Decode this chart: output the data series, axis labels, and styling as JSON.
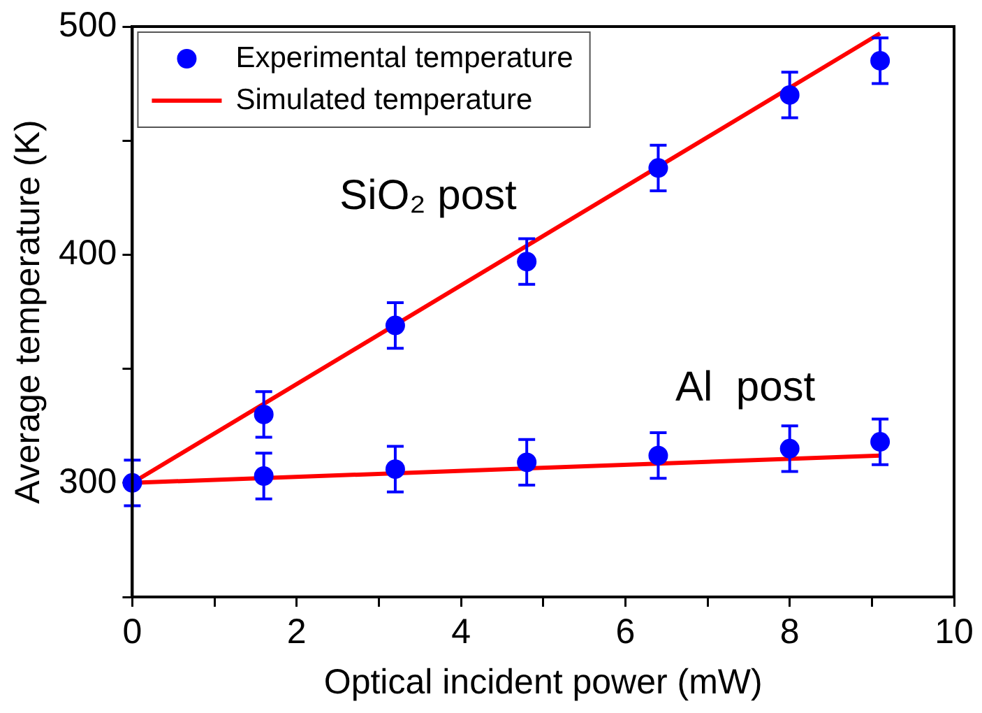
{
  "chart_data": {
    "type": "scatter",
    "xlabel": "Optical incident power (mW)",
    "ylabel": "Average temperature (K)",
    "xlim": [
      0,
      10
    ],
    "ylim": [
      250,
      500
    ],
    "xticks": [
      0,
      {
        "value": 1,
        "label": null
      },
      2,
      {
        "value": 3,
        "label": null
      },
      4,
      {
        "value": 5,
        "label": null
      },
      6,
      {
        "value": 7,
        "label": null
      },
      8,
      {
        "value": 9,
        "label": null
      },
      10
    ],
    "yticks": [
      {
        "value": 250,
        "label": null
      },
      300,
      {
        "value": 350,
        "label": null
      },
      400,
      {
        "value": 450,
        "label": null
      },
      500
    ],
    "grid": false,
    "legend": "top left",
    "marker": "circle",
    "series": [
      {
        "name": "Experimental temperature",
        "type": "scatter",
        "color": "#0000ff",
        "x": [
          0,
          1.6,
          3.2,
          4.8,
          6.4,
          8,
          9.1
        ],
        "values": [
          300,
          330,
          369,
          397,
          438,
          470,
          485
        ],
        "errors": [
          10,
          10,
          10,
          10,
          10,
          10,
          10
        ]
      },
      {
        "type": "scatter",
        "color": "#0000ff",
        "x": [
          1.6,
          3.2,
          4.8,
          6.4,
          8,
          9.1
        ],
        "values": [
          303,
          306,
          309,
          312,
          315,
          318
        ],
        "errors": [
          10,
          10,
          10,
          10,
          10,
          10
        ]
      },
      {
        "name": "Simulated temperature",
        "type": "line",
        "color": "#ff0000",
        "x": [
          0,
          9.1
        ],
        "values": [
          300,
          497
        ],
        "marker": "none"
      },
      {
        "type": "line",
        "color": "#ff0000",
        "x": [
          0,
          9.1
        ],
        "values": [
          300,
          312
        ],
        "marker": "none"
      }
    ],
    "annotations": [
      "SiO₂ post",
      "Al  post"
    ]
  }
}
